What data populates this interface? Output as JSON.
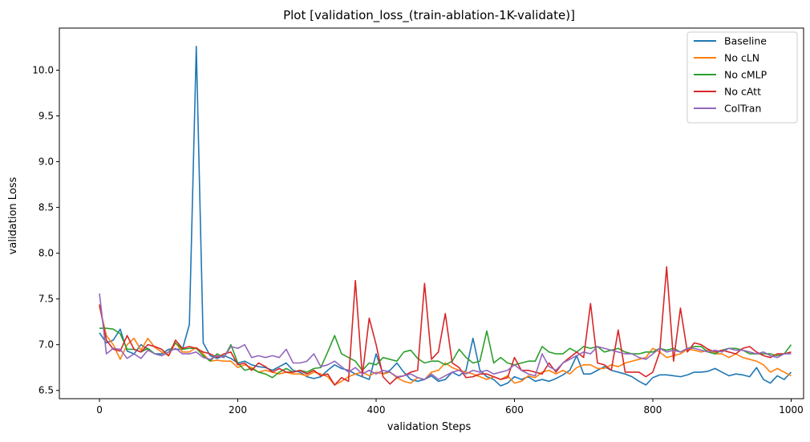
{
  "chart_data": {
    "type": "line",
    "title": "Plot [validation_loss_(train-ablation-1K-validate)]",
    "xlabel": "validation Steps",
    "ylabel": "validation Loss",
    "xlim": [
      -58,
      1018
    ],
    "ylim": [
      6.41,
      10.46
    ],
    "xticks": [
      0,
      200,
      400,
      600,
      800,
      1000
    ],
    "xtick_labels": [
      "0",
      "200",
      "400",
      "600",
      "800",
      "1000"
    ],
    "yticks": [
      6.5,
      7.0,
      7.5,
      8.0,
      8.5,
      9.0,
      9.5,
      10.0
    ],
    "ytick_labels": [
      "6.5",
      "7.0",
      "7.5",
      "8.0",
      "8.5",
      "9.0",
      "9.5",
      "10.0"
    ],
    "grid": false,
    "legend_position": "top-right",
    "x": [
      0,
      10,
      20,
      30,
      40,
      50,
      60,
      70,
      80,
      90,
      100,
      110,
      120,
      130,
      140,
      150,
      160,
      170,
      180,
      190,
      200,
      210,
      220,
      230,
      240,
      250,
      260,
      270,
      280,
      290,
      300,
      310,
      320,
      330,
      340,
      350,
      360,
      370,
      380,
      390,
      400,
      410,
      420,
      430,
      440,
      450,
      460,
      470,
      480,
      490,
      500,
      510,
      520,
      530,
      540,
      550,
      560,
      570,
      580,
      590,
      600,
      610,
      620,
      630,
      640,
      650,
      660,
      670,
      680,
      690,
      700,
      710,
      720,
      730,
      740,
      750,
      760,
      770,
      780,
      790,
      800,
      810,
      820,
      830,
      840,
      850,
      860,
      870,
      880,
      890,
      900,
      910,
      920,
      930,
      940,
      950,
      960,
      970,
      980,
      990,
      1000
    ],
    "series": [
      {
        "name": "Baseline",
        "color": "#1f77b4",
        "values": [
          7.13,
          7.02,
          7.05,
          7.17,
          6.93,
          6.9,
          7.0,
          6.95,
          6.9,
          6.9,
          6.95,
          6.95,
          6.95,
          7.22,
          10.26,
          7.02,
          6.88,
          6.85,
          6.88,
          6.85,
          6.8,
          6.82,
          6.78,
          6.76,
          6.75,
          6.72,
          6.76,
          6.8,
          6.72,
          6.7,
          6.65,
          6.63,
          6.65,
          6.72,
          6.78,
          6.74,
          6.72,
          6.68,
          6.65,
          6.62,
          6.9,
          6.68,
          6.72,
          6.8,
          6.7,
          6.62,
          6.6,
          6.62,
          6.66,
          6.6,
          6.62,
          6.7,
          6.66,
          6.72,
          7.07,
          6.72,
          6.65,
          6.62,
          6.55,
          6.58,
          6.65,
          6.62,
          6.65,
          6.6,
          6.62,
          6.6,
          6.63,
          6.67,
          6.72,
          6.88,
          6.68,
          6.68,
          6.72,
          6.76,
          6.72,
          6.7,
          6.68,
          6.65,
          6.6,
          6.56,
          6.64,
          6.67,
          6.67,
          6.66,
          6.65,
          6.67,
          6.7,
          6.7,
          6.71,
          6.74,
          6.7,
          6.66,
          6.68,
          6.67,
          6.65,
          6.75,
          6.62,
          6.58,
          6.66,
          6.62,
          6.7
        ]
      },
      {
        "name": "No cLN",
        "color": "#ff7f0e",
        "values": [
          7.42,
          7.1,
          7.0,
          6.84,
          7.0,
          7.07,
          6.94,
          7.07,
          6.97,
          6.92,
          6.88,
          7.02,
          6.92,
          6.92,
          6.97,
          6.9,
          6.82,
          6.83,
          6.82,
          6.82,
          6.75,
          6.78,
          6.75,
          6.7,
          6.72,
          6.7,
          6.68,
          6.7,
          6.68,
          6.68,
          6.66,
          6.7,
          6.68,
          6.65,
          6.56,
          6.6,
          6.65,
          6.68,
          6.7,
          6.66,
          6.7,
          6.68,
          6.7,
          6.64,
          6.6,
          6.58,
          6.64,
          6.62,
          6.7,
          6.72,
          6.8,
          6.75,
          6.72,
          6.7,
          6.68,
          6.65,
          6.62,
          6.65,
          6.62,
          6.66,
          6.58,
          6.6,
          6.66,
          6.64,
          6.7,
          6.72,
          6.68,
          6.72,
          6.68,
          6.75,
          6.78,
          6.78,
          6.74,
          6.74,
          6.78,
          6.76,
          6.8,
          6.82,
          6.84,
          6.86,
          6.96,
          6.92,
          6.86,
          6.88,
          6.9,
          6.95,
          6.94,
          6.92,
          6.94,
          6.9,
          6.9,
          6.86,
          6.9,
          6.86,
          6.84,
          6.82,
          6.78,
          6.7,
          6.74,
          6.7,
          6.66
        ]
      },
      {
        "name": "No cMLP",
        "color": "#2ca02c",
        "values": [
          7.18,
          7.18,
          7.17,
          7.12,
          6.95,
          6.95,
          6.92,
          6.96,
          6.9,
          6.88,
          6.92,
          7.02,
          6.95,
          6.96,
          6.96,
          6.88,
          6.82,
          6.9,
          6.86,
          7.0,
          6.8,
          6.72,
          6.74,
          6.7,
          6.68,
          6.64,
          6.7,
          6.74,
          6.7,
          6.72,
          6.7,
          6.74,
          6.75,
          6.92,
          7.1,
          6.9,
          6.86,
          6.82,
          6.72,
          6.8,
          6.78,
          6.86,
          6.84,
          6.82,
          6.92,
          6.94,
          6.85,
          6.8,
          6.82,
          6.82,
          6.78,
          6.82,
          6.95,
          6.86,
          6.8,
          6.82,
          7.15,
          6.8,
          6.86,
          6.8,
          6.78,
          6.8,
          6.82,
          6.82,
          6.98,
          6.92,
          6.9,
          6.9,
          6.96,
          6.92,
          6.98,
          6.96,
          6.98,
          6.92,
          6.94,
          6.96,
          6.92,
          6.9,
          6.9,
          6.92,
          6.92,
          6.96,
          6.94,
          6.96,
          6.92,
          6.96,
          6.98,
          6.98,
          6.92,
          6.9,
          6.94,
          6.96,
          6.96,
          6.94,
          6.9,
          6.9,
          6.9,
          6.9,
          6.88,
          6.9,
          7.0
        ]
      },
      {
        "name": "No cAtt",
        "color": "#d62728",
        "values": [
          7.44,
          7.05,
          6.95,
          6.93,
          7.1,
          6.95,
          6.92,
          7.0,
          6.98,
          6.95,
          6.88,
          7.05,
          6.96,
          6.98,
          6.96,
          6.92,
          6.9,
          6.86,
          6.9,
          6.92,
          6.78,
          6.8,
          6.72,
          6.8,
          6.76,
          6.7,
          6.74,
          6.7,
          6.7,
          6.72,
          6.68,
          6.72,
          6.66,
          6.68,
          6.56,
          6.64,
          6.6,
          7.7,
          6.66,
          7.29,
          7.0,
          6.65,
          6.57,
          6.64,
          6.66,
          6.7,
          6.72,
          7.67,
          6.84,
          6.92,
          7.34,
          6.8,
          6.75,
          6.64,
          6.65,
          6.68,
          6.68,
          6.65,
          6.62,
          6.64,
          6.86,
          6.72,
          6.72,
          6.7,
          6.68,
          6.8,
          6.7,
          6.8,
          6.86,
          6.92,
          6.86,
          7.45,
          6.8,
          6.78,
          6.72,
          7.16,
          6.7,
          6.7,
          6.7,
          6.65,
          6.7,
          6.92,
          7.85,
          6.82,
          7.4,
          6.92,
          7.02,
          7.0,
          6.95,
          6.92,
          6.94,
          6.92,
          6.9,
          6.96,
          6.98,
          6.92,
          6.88,
          6.86,
          6.9,
          6.9,
          6.92
        ]
      },
      {
        "name": "ColTran",
        "color": "#9467bd",
        "values": [
          7.56,
          6.9,
          6.96,
          6.95,
          6.85,
          6.9,
          6.85,
          6.94,
          6.9,
          6.88,
          6.92,
          6.96,
          6.9,
          6.9,
          6.92,
          6.86,
          6.84,
          6.88,
          6.86,
          6.98,
          6.96,
          7.0,
          6.86,
          6.88,
          6.86,
          6.88,
          6.86,
          6.95,
          6.8,
          6.8,
          6.82,
          6.9,
          6.76,
          6.78,
          6.82,
          6.76,
          6.7,
          6.75,
          6.68,
          6.72,
          6.68,
          6.72,
          6.7,
          6.65,
          6.66,
          6.68,
          6.64,
          6.62,
          6.68,
          6.62,
          6.66,
          6.7,
          6.72,
          6.68,
          6.72,
          6.7,
          6.72,
          6.68,
          6.7,
          6.72,
          6.78,
          6.72,
          6.68,
          6.66,
          6.9,
          6.76,
          6.72,
          6.8,
          6.84,
          6.88,
          6.92,
          6.9,
          6.98,
          6.96,
          6.94,
          6.92,
          6.9,
          6.9,
          6.86,
          6.84,
          6.9,
          6.96,
          6.92,
          6.94,
          6.92,
          6.96,
          6.96,
          6.94,
          6.92,
          6.94,
          6.92,
          6.96,
          6.94,
          6.94,
          6.92,
          6.9,
          6.92,
          6.88,
          6.86,
          6.9,
          6.9
        ]
      }
    ]
  }
}
